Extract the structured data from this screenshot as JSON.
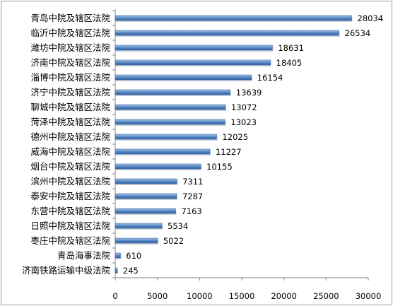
{
  "chart_data": {
    "type": "bar",
    "orientation": "horizontal",
    "categories": [
      "青岛中院及辖区法院",
      "临沂中院及辖区法院",
      "潍坊中院及辖区法院",
      "济南中院及辖区法院",
      "淄博中院及辖区法院",
      "济宁中院及辖区法院",
      "聊城中院及辖区法院",
      "菏泽中院及辖区法院",
      "德州中院及辖区法院",
      "威海中院及辖区法院",
      "烟台中院及辖区法院",
      "滨州中院及辖区法院",
      "泰安中院及辖区法院",
      "东营中院及辖区法院",
      "日照中院及辖区法院",
      "枣庄中院及辖区法院",
      "青岛海事法院",
      "济南铁路运输中级法院"
    ],
    "values": [
      28034,
      26534,
      18631,
      18405,
      16154,
      13639,
      13072,
      13023,
      12025,
      11227,
      10155,
      7311,
      7287,
      7163,
      5534,
      5022,
      610,
      245
    ],
    "value_labels": [
      "28034",
      "26534",
      "18631",
      "18405",
      "16154",
      "13639",
      "13072",
      "13023",
      "12025",
      "11227",
      "10155",
      "7311",
      "7287",
      "7163",
      "5534",
      "5022",
      "610",
      "245"
    ],
    "xlim": [
      0,
      30000
    ],
    "xticks": [
      "0",
      "5000",
      "10000",
      "15000",
      "20000",
      "25000",
      "30000"
    ],
    "grid": false,
    "legend": "none",
    "bar_color": "#4f81bd",
    "title": "",
    "xlabel": "",
    "ylabel": ""
  }
}
